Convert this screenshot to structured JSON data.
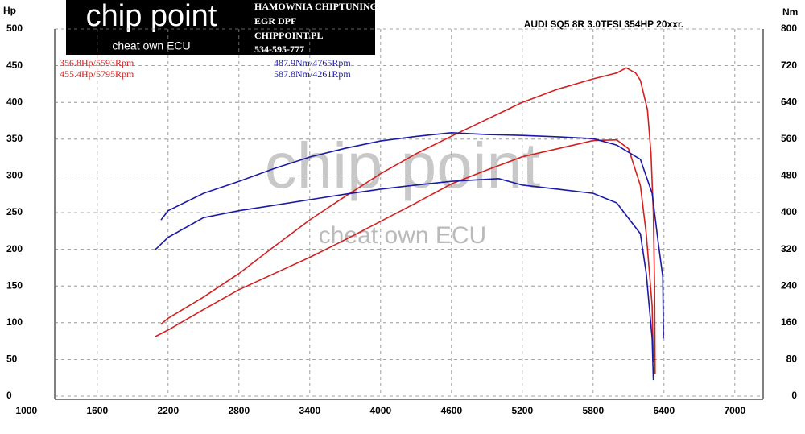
{
  "header": {
    "logo": "chip point",
    "tagline": "cheat own ECU",
    "lines": [
      "HAMOWNIA CHIPTUNING",
      "EGR DPF",
      "CHIPPOINT.PL",
      "534-595-777"
    ]
  },
  "watermark": {
    "logo": "chip point",
    "tagline": "cheat own ECU"
  },
  "chart_data": {
    "type": "line",
    "title": "AUDI SQ5 8R 3.0TFSI 354HP 20xxr.",
    "y_label": "Hp",
    "y2_label": "Nm",
    "annotations": [
      {
        "text": "356.8Hp/5593Rpm",
        "color": "#d42020"
      },
      {
        "text": "455.4Hp/5795Rpm",
        "color": "#d42020"
      },
      {
        "text": "487.9Nm/4765Rpm",
        "color": "#1a1aa8"
      },
      {
        "text": "587.8Nm/4261Rpm",
        "color": "#1a1aa8"
      }
    ],
    "xlim": [
      1240,
      7240
    ],
    "xticks": [
      1000,
      1600,
      2200,
      2800,
      3400,
      4000,
      4600,
      5200,
      5800,
      6400,
      7000
    ],
    "ylim": [
      0,
      500
    ],
    "yticks": [
      0,
      50,
      100,
      150,
      200,
      250,
      300,
      350,
      400,
      450,
      500
    ],
    "y2lim": [
      0,
      800
    ],
    "y2ticks": [
      0,
      80,
      160,
      240,
      320,
      400,
      480,
      560,
      640,
      720,
      800
    ],
    "grid": true,
    "series": [
      {
        "color": "#d42020",
        "x": [
          2140,
          2200,
          2500,
          2800,
          3100,
          3400,
          3700,
          4000,
          4300,
          4600,
          4900,
          5200,
          5500,
          5800,
          6000,
          6080,
          6160,
          6200,
          6260,
          6290,
          6310,
          6320,
          6325
        ],
        "values": [
          98,
          106,
          135,
          167,
          204,
          240,
          272,
          303,
          330,
          354,
          377,
          400,
          418,
          432,
          440,
          447,
          440,
          430,
          390,
          330,
          250,
          150,
          30
        ]
      },
      {
        "color": "#d42020",
        "x": [
          2090,
          2200,
          2500,
          2800,
          3100,
          3400,
          3700,
          4000,
          4300,
          4600,
          4900,
          5200,
          5500,
          5800,
          6000,
          6100,
          6200,
          6250,
          6300,
          6310
        ],
        "values": [
          81,
          90,
          118,
          145,
          167,
          189,
          213,
          238,
          263,
          289,
          308,
          326,
          337,
          348,
          349,
          337,
          287,
          221,
          123,
          46
        ]
      },
      {
        "color": "#1a1aa8",
        "axis": "y2",
        "x": [
          2140,
          2200,
          2500,
          2800,
          3100,
          3400,
          3700,
          4000,
          4300,
          4600,
          4900,
          5200,
          5500,
          5800,
          6000,
          6200,
          6300,
          6350,
          6390,
          6395
        ],
        "values": [
          384,
          404,
          442,
          468,
          496,
          521,
          540,
          556,
          566,
          574,
          570,
          568,
          565,
          561,
          547,
          516,
          442,
          337,
          260,
          126
        ]
      },
      {
        "color": "#1a1aa8",
        "axis": "y2",
        "x": [
          2090,
          2200,
          2500,
          2800,
          3100,
          3400,
          3700,
          4000,
          4300,
          4600,
          5000,
          5200,
          5500,
          5800,
          6000,
          6200,
          6250,
          6300,
          6310
        ],
        "values": [
          319,
          346,
          389,
          404,
          416,
          428,
          440,
          451,
          460,
          468,
          474,
          460,
          451,
          442,
          421,
          354,
          267,
          126,
          35
        ]
      }
    ]
  }
}
